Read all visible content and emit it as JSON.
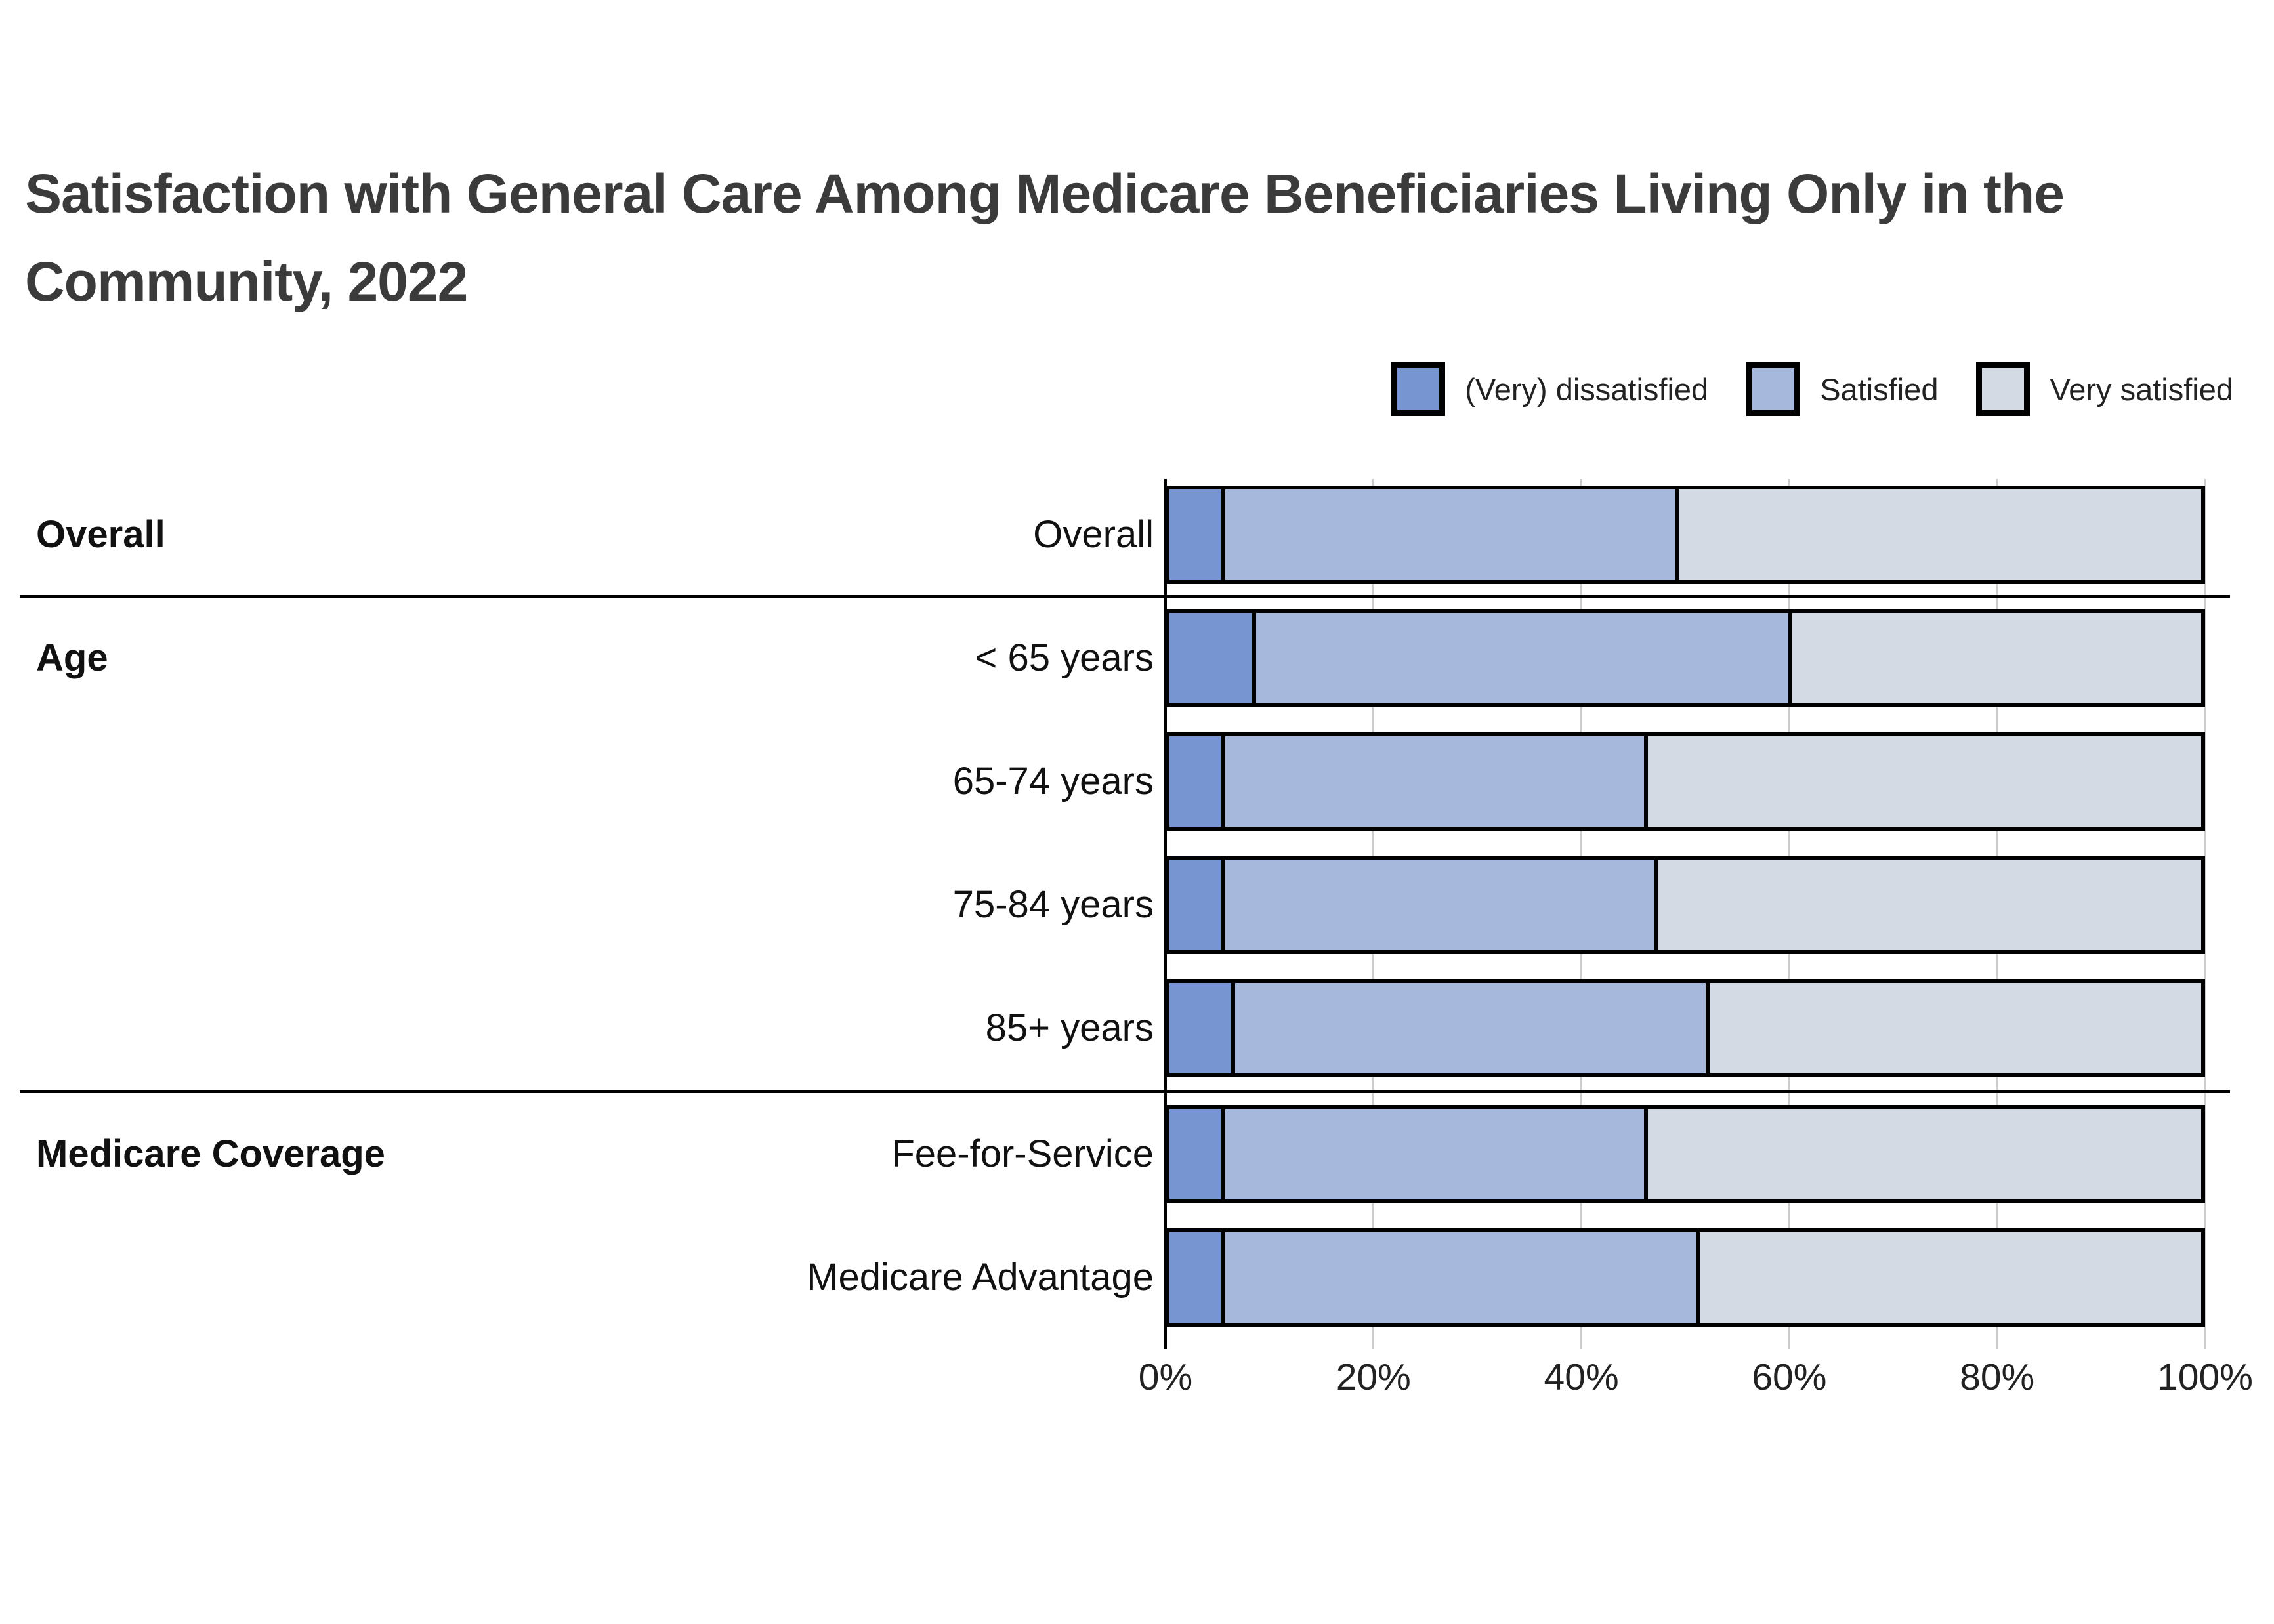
{
  "page": {
    "background": "#FFFFFF"
  },
  "title": "Satisfaction with General Care Among Medicare Beneficiaries Living Only in the Community, 2022",
  "colors": {
    "title_text": "#3B3B3B",
    "bar_border": "#000000",
    "grid": "#CCCCCC",
    "axis_line": "#000000",
    "separator": "#000000"
  },
  "chart_data": {
    "type": "bar",
    "orientation": "horizontal-stacked",
    "title": "Satisfaction with General Care Among Medicare Beneficiaries Living Only in the Community, 2022",
    "grid": true,
    "legend_position": "top-right",
    "x_axis": {
      "min": 0,
      "max": 100,
      "tick_labels": [
        "0%",
        "20%",
        "40%",
        "60%",
        "80%",
        "100%"
      ],
      "tick_values": [
        0,
        20,
        40,
        60,
        80,
        100
      ]
    },
    "series": [
      {
        "name": "(Very) dissatisfied",
        "color": "#7795D0"
      },
      {
        "name": "Satisfied",
        "color": "#A6B9DC"
      },
      {
        "name": "Very satisfied",
        "color": "#D4DAE4"
      }
    ],
    "groups": [
      {
        "label": "Overall",
        "rows": [
          {
            "label": "Overall",
            "values": [
              5,
              44,
              51
            ]
          }
        ]
      },
      {
        "label": "Age",
        "rows": [
          {
            "label": "< 65 years",
            "values": [
              8,
              52,
              40
            ]
          },
          {
            "label": "65-74 years",
            "values": [
              5,
              41,
              54
            ]
          },
          {
            "label": "75-84 years",
            "values": [
              5,
              42,
              53
            ]
          },
          {
            "label": "85+ years",
            "values": [
              6,
              46,
              48
            ]
          }
        ]
      },
      {
        "label": "Medicare Coverage",
        "rows": [
          {
            "label": "Fee-for-Service",
            "values": [
              5,
              41,
              54
            ]
          },
          {
            "label": "Medicare Advantage",
            "values": [
              5,
              46,
              49
            ]
          }
        ]
      }
    ]
  }
}
